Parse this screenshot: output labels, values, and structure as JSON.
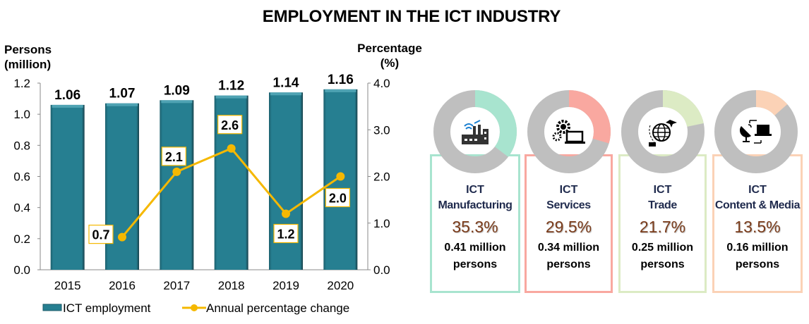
{
  "title": "EMPLOYMENT IN THE ICT INDUSTRY",
  "chart_data": {
    "type": "bar",
    "title": "EMPLOYMENT IN THE ICT INDUSTRY",
    "categories": [
      "2015",
      "2016",
      "2017",
      "2018",
      "2019",
      "2020"
    ],
    "series": [
      {
        "name": "ICT employment",
        "type": "bar",
        "axis": "left",
        "values": [
          1.06,
          1.07,
          1.09,
          1.12,
          1.14,
          1.16
        ],
        "labels": [
          "1.06",
          "1.07",
          "1.09",
          "1.12",
          "1.14",
          "1.16"
        ],
        "color": "#267f91"
      },
      {
        "name": "Annual percentage change",
        "type": "line",
        "axis": "right",
        "values": [
          null,
          0.7,
          2.1,
          2.6,
          1.2,
          2.0
        ],
        "labels": [
          "",
          "0.7",
          "2.1",
          "2.6",
          "1.2",
          "2.0"
        ],
        "color": "#f5b800"
      }
    ],
    "ylabel_left": [
      "Persons",
      "(million)"
    ],
    "ylabel_right": [
      "Percentage",
      "(%)"
    ],
    "ylim_left": [
      0,
      1.2
    ],
    "yticks_left": [
      "0.0",
      "0.2",
      "0.4",
      "0.6",
      "0.8",
      "1.0",
      "1.2"
    ],
    "ylim_right": [
      0,
      4.0
    ],
    "yticks_right": [
      "0.0",
      "1.0",
      "2.0",
      "3.0",
      "4.0"
    ],
    "grid": false,
    "legend": "bottom"
  },
  "breakdown": [
    {
      "line1": "ICT",
      "line2": "Manufacturing",
      "percent": "35.3%",
      "share": 35.3,
      "persons1": "0.41 million",
      "persons2": "persons",
      "color": "#a8e4cf",
      "icon": "factory-icon"
    },
    {
      "line1": "ICT",
      "line2": "Services",
      "percent": "29.5%",
      "share": 29.5,
      "persons1": "0.34 million",
      "persons2": "persons",
      "color": "#f9a8a0",
      "icon": "gears-laptop-icon"
    },
    {
      "line1": "ICT",
      "line2": "Trade",
      "percent": "21.7%",
      "share": 21.7,
      "persons1": "0.25 million",
      "persons2": "persons",
      "color": "#dcebc4",
      "icon": "globe-trade-icon"
    },
    {
      "line1": "ICT",
      "line2": "Content & Media",
      "percent": "13.5%",
      "share": 13.5,
      "persons1": "0.16 million",
      "persons2": "persons",
      "color": "#fbd2b6",
      "icon": "satellite-laptop-icon"
    }
  ]
}
